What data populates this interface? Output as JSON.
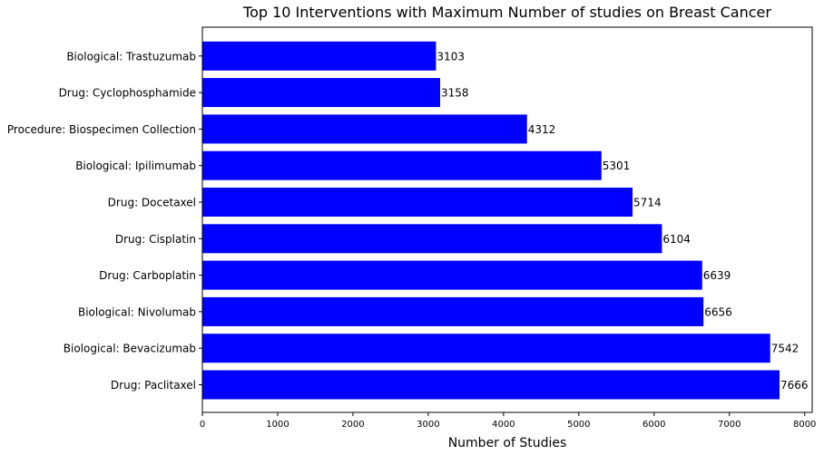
{
  "chart_data": {
    "type": "bar",
    "orientation": "horizontal",
    "title": "Top 10 Interventions with Maximum Number of studies on Breast Cancer",
    "xlabel": "Number of Studies",
    "ylabel": "",
    "categories": [
      "Drug: Paclitaxel",
      "Biological: Bevacizumab",
      "Biological: Nivolumab",
      "Drug: Carboplatin",
      "Drug: Cisplatin",
      "Drug: Docetaxel",
      "Biological: Ipilimumab",
      "Procedure: Biospecimen Collection",
      "Drug: Cyclophosphamide",
      "Biological: Trastuzumab"
    ],
    "values": [
      7666,
      7542,
      6656,
      6639,
      6104,
      5714,
      5301,
      4312,
      3158,
      3103
    ],
    "data_labels": [
      "7666",
      "7542",
      "6656",
      "6639",
      "6104",
      "5714",
      "5301",
      "4312",
      "3158",
      "3103"
    ],
    "xlim": [
      0,
      8100
    ],
    "xticks": [
      0,
      1000,
      2000,
      3000,
      4000,
      5000,
      6000,
      7000,
      8000
    ],
    "xtick_labels": [
      "0",
      "1000",
      "2000",
      "3000",
      "4000",
      "5000",
      "6000",
      "7000",
      "8000"
    ],
    "bar_color": "#0000ff",
    "grid": false,
    "legend": "none"
  }
}
